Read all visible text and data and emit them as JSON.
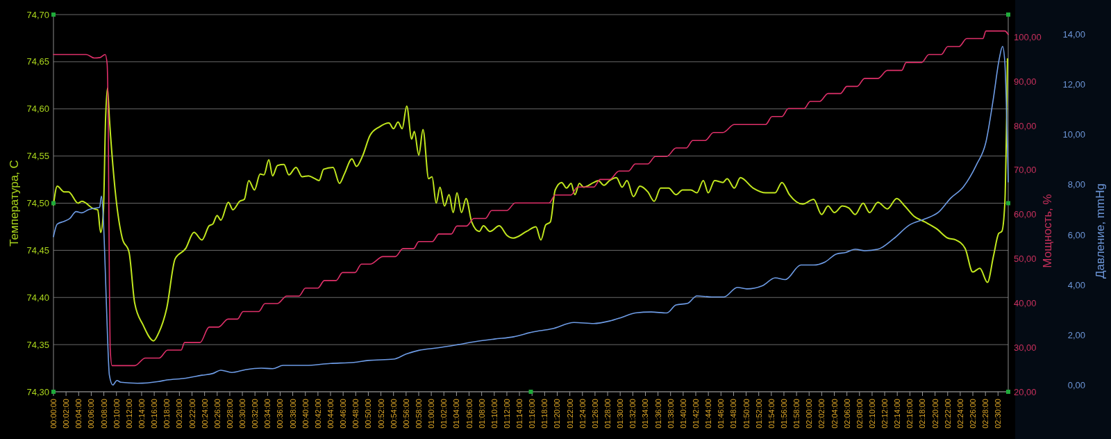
{
  "chart_data": {
    "type": "line",
    "ylabel": "Температура, С",
    "y2label": "Мощность, %",
    "y3label": "Давление, mmHg",
    "xlim": [
      0,
      2.527
    ],
    "ylim": [
      74.3,
      74.7
    ],
    "y2lim": [
      20,
      105.1
    ],
    "y3lim": [
      -0.25,
      14.78
    ],
    "grid": "y",
    "marker": "none",
    "line_style": "solid",
    "yticks": [
      {
        "value": 74.3,
        "label": "74,30"
      },
      {
        "value": 74.35,
        "label": "74,35"
      },
      {
        "value": 74.4,
        "label": "74,40"
      },
      {
        "value": 74.45,
        "label": "74,45"
      },
      {
        "value": 74.5,
        "label": "74,50"
      },
      {
        "value": 74.55,
        "label": "74,55"
      },
      {
        "value": 74.6,
        "label": "74,60"
      },
      {
        "value": 74.65,
        "label": "74,65"
      },
      {
        "value": 74.7,
        "label": "74,70"
      }
    ],
    "y2ticks": [
      {
        "value": 20,
        "label": "20,00"
      },
      {
        "value": 30,
        "label": "30,00"
      },
      {
        "value": 40,
        "label": "40,00"
      },
      {
        "value": 50,
        "label": "50,00"
      },
      {
        "value": 60,
        "label": "60,00"
      },
      {
        "value": 70,
        "label": "70,00"
      },
      {
        "value": 80,
        "label": "80,00"
      },
      {
        "value": 90,
        "label": "90,00"
      },
      {
        "value": 100,
        "label": "100,00"
      }
    ],
    "y3ticks": [
      {
        "value": 0,
        "label": "0,00"
      },
      {
        "value": 2,
        "label": "2,00"
      },
      {
        "value": 4,
        "label": "4,00"
      },
      {
        "value": 6,
        "label": "6,00"
      },
      {
        "value": 8,
        "label": "8,00"
      },
      {
        "value": 10,
        "label": "10,00"
      },
      {
        "value": 12,
        "label": "12,00"
      },
      {
        "value": 14,
        "label": "14,00"
      }
    ],
    "xticks": [
      {
        "value": 0,
        "label": "00:00:00"
      },
      {
        "value": 0.0333,
        "label": "00:02:00"
      },
      {
        "value": 0.0667,
        "label": "00:04:00"
      },
      {
        "value": 0.1,
        "label": "00:06:00"
      },
      {
        "value": 0.1333,
        "label": "00:08:00"
      },
      {
        "value": 0.1667,
        "label": "00:10:00"
      },
      {
        "value": 0.2,
        "label": "00:12:00"
      },
      {
        "value": 0.2333,
        "label": "00:14:00"
      },
      {
        "value": 0.2667,
        "label": "00:16:00"
      },
      {
        "value": 0.3,
        "label": "00:18:00"
      },
      {
        "value": 0.3333,
        "label": "00:20:00"
      },
      {
        "value": 0.3667,
        "label": "00:22:00"
      },
      {
        "value": 0.4,
        "label": "00:24:00"
      },
      {
        "value": 0.4333,
        "label": "00:26:00"
      },
      {
        "value": 0.4667,
        "label": "00:28:00"
      },
      {
        "value": 0.5,
        "label": "00:30:00"
      },
      {
        "value": 0.5333,
        "label": "00:32:00"
      },
      {
        "value": 0.5667,
        "label": "00:34:00"
      },
      {
        "value": 0.6,
        "label": "00:36:00"
      },
      {
        "value": 0.6333,
        "label": "00:38:00"
      },
      {
        "value": 0.6667,
        "label": "00:40:00"
      },
      {
        "value": 0.7,
        "label": "00:42:00"
      },
      {
        "value": 0.7333,
        "label": "00:44:00"
      },
      {
        "value": 0.7667,
        "label": "00:46:00"
      },
      {
        "value": 0.8,
        "label": "00:48:00"
      },
      {
        "value": 0.8333,
        "label": "00:50:00"
      },
      {
        "value": 0.8667,
        "label": "00:52:00"
      },
      {
        "value": 0.9,
        "label": "00:54:00"
      },
      {
        "value": 0.9333,
        "label": "00:56:00"
      },
      {
        "value": 0.9667,
        "label": "00:58:00"
      },
      {
        "value": 1,
        "label": "01:00:00"
      },
      {
        "value": 1.0333,
        "label": "01:02:00"
      },
      {
        "value": 1.0667,
        "label": "01:04:00"
      },
      {
        "value": 1.1,
        "label": "01:06:00"
      },
      {
        "value": 1.1333,
        "label": "01:08:00"
      },
      {
        "value": 1.1667,
        "label": "01:10:00"
      },
      {
        "value": 1.2,
        "label": "01:12:00"
      },
      {
        "value": 1.2333,
        "label": "01:14:00"
      },
      {
        "value": 1.2667,
        "label": "01:16:00"
      },
      {
        "value": 1.3,
        "label": "01:18:00"
      },
      {
        "value": 1.3333,
        "label": "01:20:00"
      },
      {
        "value": 1.3667,
        "label": "01:22:00"
      },
      {
        "value": 1.4,
        "label": "01:24:00"
      },
      {
        "value": 1.4333,
        "label": "01:26:00"
      },
      {
        "value": 1.4667,
        "label": "01:28:00"
      },
      {
        "value": 1.5,
        "label": "01:30:00"
      },
      {
        "value": 1.5333,
        "label": "01:32:00"
      },
      {
        "value": 1.5667,
        "label": "01:34:00"
      },
      {
        "value": 1.6,
        "label": "01:36:00"
      },
      {
        "value": 1.6333,
        "label": "01:38:00"
      },
      {
        "value": 1.6667,
        "label": "01:40:00"
      },
      {
        "value": 1.7,
        "label": "01:42:00"
      },
      {
        "value": 1.7333,
        "label": "01:44:00"
      },
      {
        "value": 1.7667,
        "label": "01:46:00"
      },
      {
        "value": 1.8,
        "label": "01:48:00"
      },
      {
        "value": 1.8333,
        "label": "01:50:00"
      },
      {
        "value": 1.8667,
        "label": "01:52:00"
      },
      {
        "value": 1.9,
        "label": "01:54:00"
      },
      {
        "value": 1.9333,
        "label": "01:56:00"
      },
      {
        "value": 1.9667,
        "label": "01:58:00"
      },
      {
        "value": 2,
        "label": "02:00:00"
      },
      {
        "value": 2.0333,
        "label": "02:02:00"
      },
      {
        "value": 2.0667,
        "label": "02:04:00"
      },
      {
        "value": 2.1,
        "label": "02:06:00"
      },
      {
        "value": 2.1333,
        "label": "02:08:00"
      },
      {
        "value": 2.1667,
        "label": "02:10:00"
      },
      {
        "value": 2.2,
        "label": "02:12:00"
      },
      {
        "value": 2.2333,
        "label": "02:14:00"
      },
      {
        "value": 2.2667,
        "label": "02:16:00"
      },
      {
        "value": 2.3,
        "label": "02:18:00"
      },
      {
        "value": 2.3333,
        "label": "02:20:00"
      },
      {
        "value": 2.3667,
        "label": "02:22:00"
      },
      {
        "value": 2.4,
        "label": "02:24:00"
      },
      {
        "value": 2.4333,
        "label": "02:26:00"
      },
      {
        "value": 2.4667,
        "label": "02:28:00"
      },
      {
        "value": 2.5,
        "label": "02:30:00"
      }
    ],
    "series": [
      {
        "color": "#c2e81e",
        "x": [
          0,
          0.01,
          0.028,
          0.04,
          0.065,
          0.075,
          0.107,
          0.117,
          0.125,
          0.132,
          0.138,
          0.143,
          0.148,
          0.165,
          0.182,
          0.2,
          0.215,
          0.237,
          0.265,
          0.278,
          0.3,
          0.322,
          0.35,
          0.372,
          0.393,
          0.412,
          0.422,
          0.433,
          0.443,
          0.463,
          0.475,
          0.493,
          0.505,
          0.517,
          0.532,
          0.547,
          0.557,
          0.57,
          0.58,
          0.593,
          0.61,
          0.623,
          0.642,
          0.658,
          0.675,
          0.692,
          0.703,
          0.715,
          0.74,
          0.757,
          0.77,
          0.79,
          0.802,
          0.818,
          0.838,
          0.863,
          0.888,
          0.9,
          0.912,
          0.923,
          0.935,
          0.948,
          0.955,
          0.967,
          0.978,
          0.993,
          1.002,
          1.013,
          1.023,
          1.035,
          1.047,
          1.058,
          1.068,
          1.08,
          1.092,
          1.107,
          1.127,
          1.138,
          1.155,
          1.18,
          1.2,
          1.217,
          1.252,
          1.277,
          1.29,
          1.303,
          1.315,
          1.328,
          1.345,
          1.358,
          1.37,
          1.38,
          1.392,
          1.403,
          1.43,
          1.442,
          1.457,
          1.472,
          1.49,
          1.505,
          1.518,
          1.535,
          1.552,
          1.573,
          1.59,
          1.607,
          1.628,
          1.648,
          1.665,
          1.687,
          1.703,
          1.72,
          1.733,
          1.75,
          1.772,
          1.783,
          1.802,
          1.818,
          1.852,
          1.885,
          1.91,
          1.928,
          1.948,
          1.983,
          2.012,
          2.033,
          2.05,
          2.067,
          2.088,
          2.105,
          2.122,
          2.143,
          2.16,
          2.182,
          2.207,
          2.232,
          2.253,
          2.278,
          2.307,
          2.337,
          2.367,
          2.388,
          2.413,
          2.433,
          2.452,
          2.472,
          2.488,
          2.502,
          2.51,
          2.518,
          2.525
        ],
        "values": [
          74.498,
          74.518,
          74.512,
          74.512,
          74.5,
          74.502,
          74.494,
          74.493,
          74.469,
          74.49,
          74.59,
          74.622,
          74.59,
          74.507,
          74.463,
          74.448,
          74.394,
          74.371,
          74.354,
          74.362,
          74.389,
          74.441,
          74.452,
          74.469,
          74.461,
          74.476,
          74.478,
          74.487,
          74.482,
          74.501,
          74.493,
          74.502,
          74.504,
          74.524,
          74.514,
          74.531,
          74.53,
          74.546,
          74.529,
          74.54,
          74.541,
          74.53,
          74.538,
          74.528,
          74.529,
          74.526,
          74.524,
          74.536,
          74.538,
          74.521,
          74.531,
          74.547,
          74.539,
          74.55,
          74.572,
          74.581,
          74.585,
          74.579,
          74.586,
          74.579,
          74.603,
          74.568,
          74.576,
          74.551,
          74.578,
          74.526,
          74.528,
          74.5,
          74.517,
          74.497,
          74.509,
          74.49,
          74.511,
          74.49,
          74.505,
          74.48,
          74.47,
          74.476,
          74.47,
          74.476,
          74.466,
          74.463,
          74.47,
          74.475,
          74.461,
          74.477,
          74.48,
          74.514,
          74.522,
          74.516,
          74.521,
          74.509,
          74.521,
          74.517,
          74.522,
          74.524,
          74.519,
          74.524,
          74.527,
          74.517,
          74.524,
          74.507,
          74.518,
          74.512,
          74.502,
          74.516,
          74.516,
          74.509,
          74.514,
          74.514,
          74.511,
          74.524,
          74.511,
          74.524,
          74.522,
          74.526,
          74.516,
          74.527,
          74.516,
          74.511,
          74.511,
          74.522,
          74.509,
          74.499,
          74.504,
          74.488,
          74.497,
          74.49,
          74.497,
          74.495,
          74.488,
          74.5,
          74.49,
          74.501,
          74.494,
          74.505,
          74.497,
          74.486,
          74.48,
          74.473,
          74.463,
          74.461,
          74.452,
          74.427,
          74.431,
          74.416,
          74.444,
          74.468,
          74.47,
          74.5,
          74.653
        ]
      },
      {
        "color": "#e0306a",
        "axis": "y2",
        "x": [
          0,
          0.087,
          0.108,
          0.123,
          0.137,
          0.142,
          0.145,
          0.148,
          0.15,
          0.155,
          0.215,
          0.243,
          0.28,
          0.302,
          0.338,
          0.347,
          0.388,
          0.412,
          0.437,
          0.462,
          0.487,
          0.502,
          0.543,
          0.56,
          0.593,
          0.617,
          0.65,
          0.667,
          0.7,
          0.717,
          0.748,
          0.765,
          0.798,
          0.815,
          0.838,
          0.872,
          0.905,
          0.925,
          0.953,
          0.967,
          1.003,
          1.02,
          1.053,
          1.068,
          1.093,
          1.113,
          1.143,
          1.16,
          1.2,
          1.222,
          1.312,
          1.328,
          1.37,
          1.387,
          1.43,
          1.447,
          1.472,
          1.497,
          1.522,
          1.54,
          1.573,
          1.593,
          1.623,
          1.648,
          1.675,
          1.692,
          1.725,
          1.747,
          1.772,
          1.802,
          1.885,
          1.902,
          1.928,
          1.945,
          1.987,
          2.003,
          2.028,
          2.05,
          2.083,
          2.1,
          2.127,
          2.147,
          2.182,
          2.207,
          2.245,
          2.257,
          2.298,
          2.317,
          2.35,
          2.367,
          2.397,
          2.417,
          2.46,
          2.468,
          2.518,
          2.527
        ],
        "values": [
          96.1,
          96.1,
          95.3,
          95.4,
          96.1,
          94,
          80,
          45,
          30,
          25.9,
          25.9,
          27.6,
          27.6,
          29.4,
          29.4,
          31.1,
          31.1,
          34.6,
          34.6,
          36.4,
          36.4,
          38.1,
          38.1,
          39.9,
          39.9,
          41.6,
          41.6,
          43.4,
          43.4,
          45.1,
          45.1,
          46.9,
          46.9,
          48.8,
          48.8,
          50.5,
          50.5,
          52.3,
          52.3,
          53.9,
          53.9,
          55.6,
          55.6,
          57.4,
          57.4,
          59.1,
          59.1,
          60.9,
          60.9,
          62.6,
          62.6,
          64.4,
          64.4,
          66.2,
          66.2,
          67.9,
          67.9,
          69.8,
          69.8,
          71.4,
          71.4,
          73.1,
          73.1,
          75,
          75,
          76.7,
          76.7,
          78.5,
          78.5,
          80.3,
          80.3,
          82.1,
          82.1,
          83.9,
          83.9,
          85.5,
          85.5,
          87.3,
          87.3,
          88.9,
          88.9,
          90.7,
          90.7,
          92.5,
          92.5,
          94.3,
          94.3,
          96.1,
          96.1,
          97.9,
          97.9,
          99.7,
          99.7,
          101.4,
          101.4,
          100.6
        ]
      },
      {
        "color": "#6e9ce6",
        "axis": "y3",
        "x": [
          0,
          0.01,
          0.028,
          0.043,
          0.06,
          0.075,
          0.093,
          0.115,
          0.122,
          0.127,
          0.132,
          0.137,
          0.143,
          0.148,
          0.157,
          0.168,
          0.178,
          0.222,
          0.278,
          0.3,
          0.35,
          0.393,
          0.422,
          0.443,
          0.472,
          0.508,
          0.55,
          0.58,
          0.608,
          0.667,
          0.733,
          0.795,
          0.833,
          0.9,
          0.933,
          0.967,
          1.017,
          1.067,
          1.117,
          1.167,
          1.218,
          1.268,
          1.32,
          1.378,
          1.43,
          1.472,
          1.505,
          1.54,
          1.582,
          1.623,
          1.648,
          1.678,
          1.703,
          1.742,
          1.775,
          1.81,
          1.835,
          1.877,
          1.91,
          1.937,
          1.978,
          2.012,
          2.042,
          2.072,
          2.097,
          2.122,
          2.147,
          2.182,
          2.223,
          2.265,
          2.307,
          2.342,
          2.375,
          2.408,
          2.443,
          2.468,
          2.488,
          2.503,
          2.512,
          2.518,
          2.525,
          2.527
        ],
        "values": [
          5.93,
          6.43,
          6.54,
          6.65,
          6.93,
          6.88,
          7.01,
          7.08,
          7.1,
          7.55,
          6.65,
          4.65,
          1.97,
          0.41,
          0.02,
          0.2,
          0.13,
          0.09,
          0.16,
          0.22,
          0.29,
          0.41,
          0.48,
          0.61,
          0.52,
          0.63,
          0.69,
          0.67,
          0.8,
          0.8,
          0.88,
          0.92,
          1,
          1.05,
          1.25,
          1.4,
          1.5,
          1.62,
          1.75,
          1.85,
          1.94,
          2.13,
          2.26,
          2.51,
          2.47,
          2.57,
          2.72,
          2.89,
          2.93,
          2.89,
          3.21,
          3.27,
          3.57,
          3.53,
          3.53,
          3.91,
          3.85,
          3.98,
          4.29,
          4.22,
          4.8,
          4.8,
          4.92,
          5.24,
          5.3,
          5.43,
          5.37,
          5.43,
          5.84,
          6.39,
          6.64,
          6.9,
          7.47,
          7.91,
          8.8,
          9.7,
          11.47,
          13,
          13.51,
          12.88,
          9.44,
          8.11
        ]
      }
    ]
  }
}
